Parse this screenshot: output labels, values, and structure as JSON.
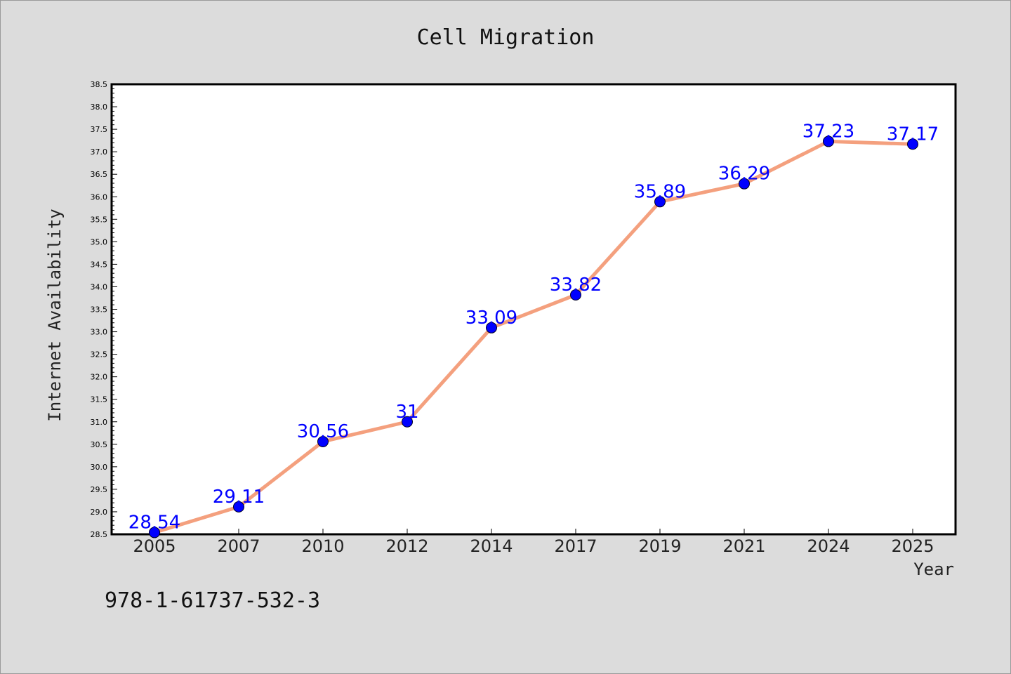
{
  "chart_data": {
    "type": "line",
    "title": "Cell Migration",
    "xlabel": "Year",
    "ylabel": "Internet Availability",
    "categories": [
      "2005",
      "2007",
      "2010",
      "2012",
      "2014",
      "2017",
      "2019",
      "2021",
      "2024",
      "2025"
    ],
    "series": [
      {
        "values": [
          28.54,
          29.11,
          30.56,
          31,
          33.09,
          33.82,
          35.89,
          36.29,
          37.23,
          37.17
        ],
        "data_labels": [
          "28.54",
          "29.11",
          "30.56",
          "31",
          "33.09",
          "33.82",
          "35.89",
          "36.29",
          "37.23",
          "37.17"
        ],
        "line_color": "#f4a07e",
        "marker_color": "#0000ff",
        "label_color": "#0000ff"
      }
    ],
    "ylim": [
      28.5,
      38.5
    ],
    "ytick_step": 0.5,
    "grid": false,
    "legend": "none"
  },
  "footnote": "978-1-61737-532-3",
  "colors": {
    "background": "#dcdcdc",
    "plot_background": "#ffffff"
  }
}
